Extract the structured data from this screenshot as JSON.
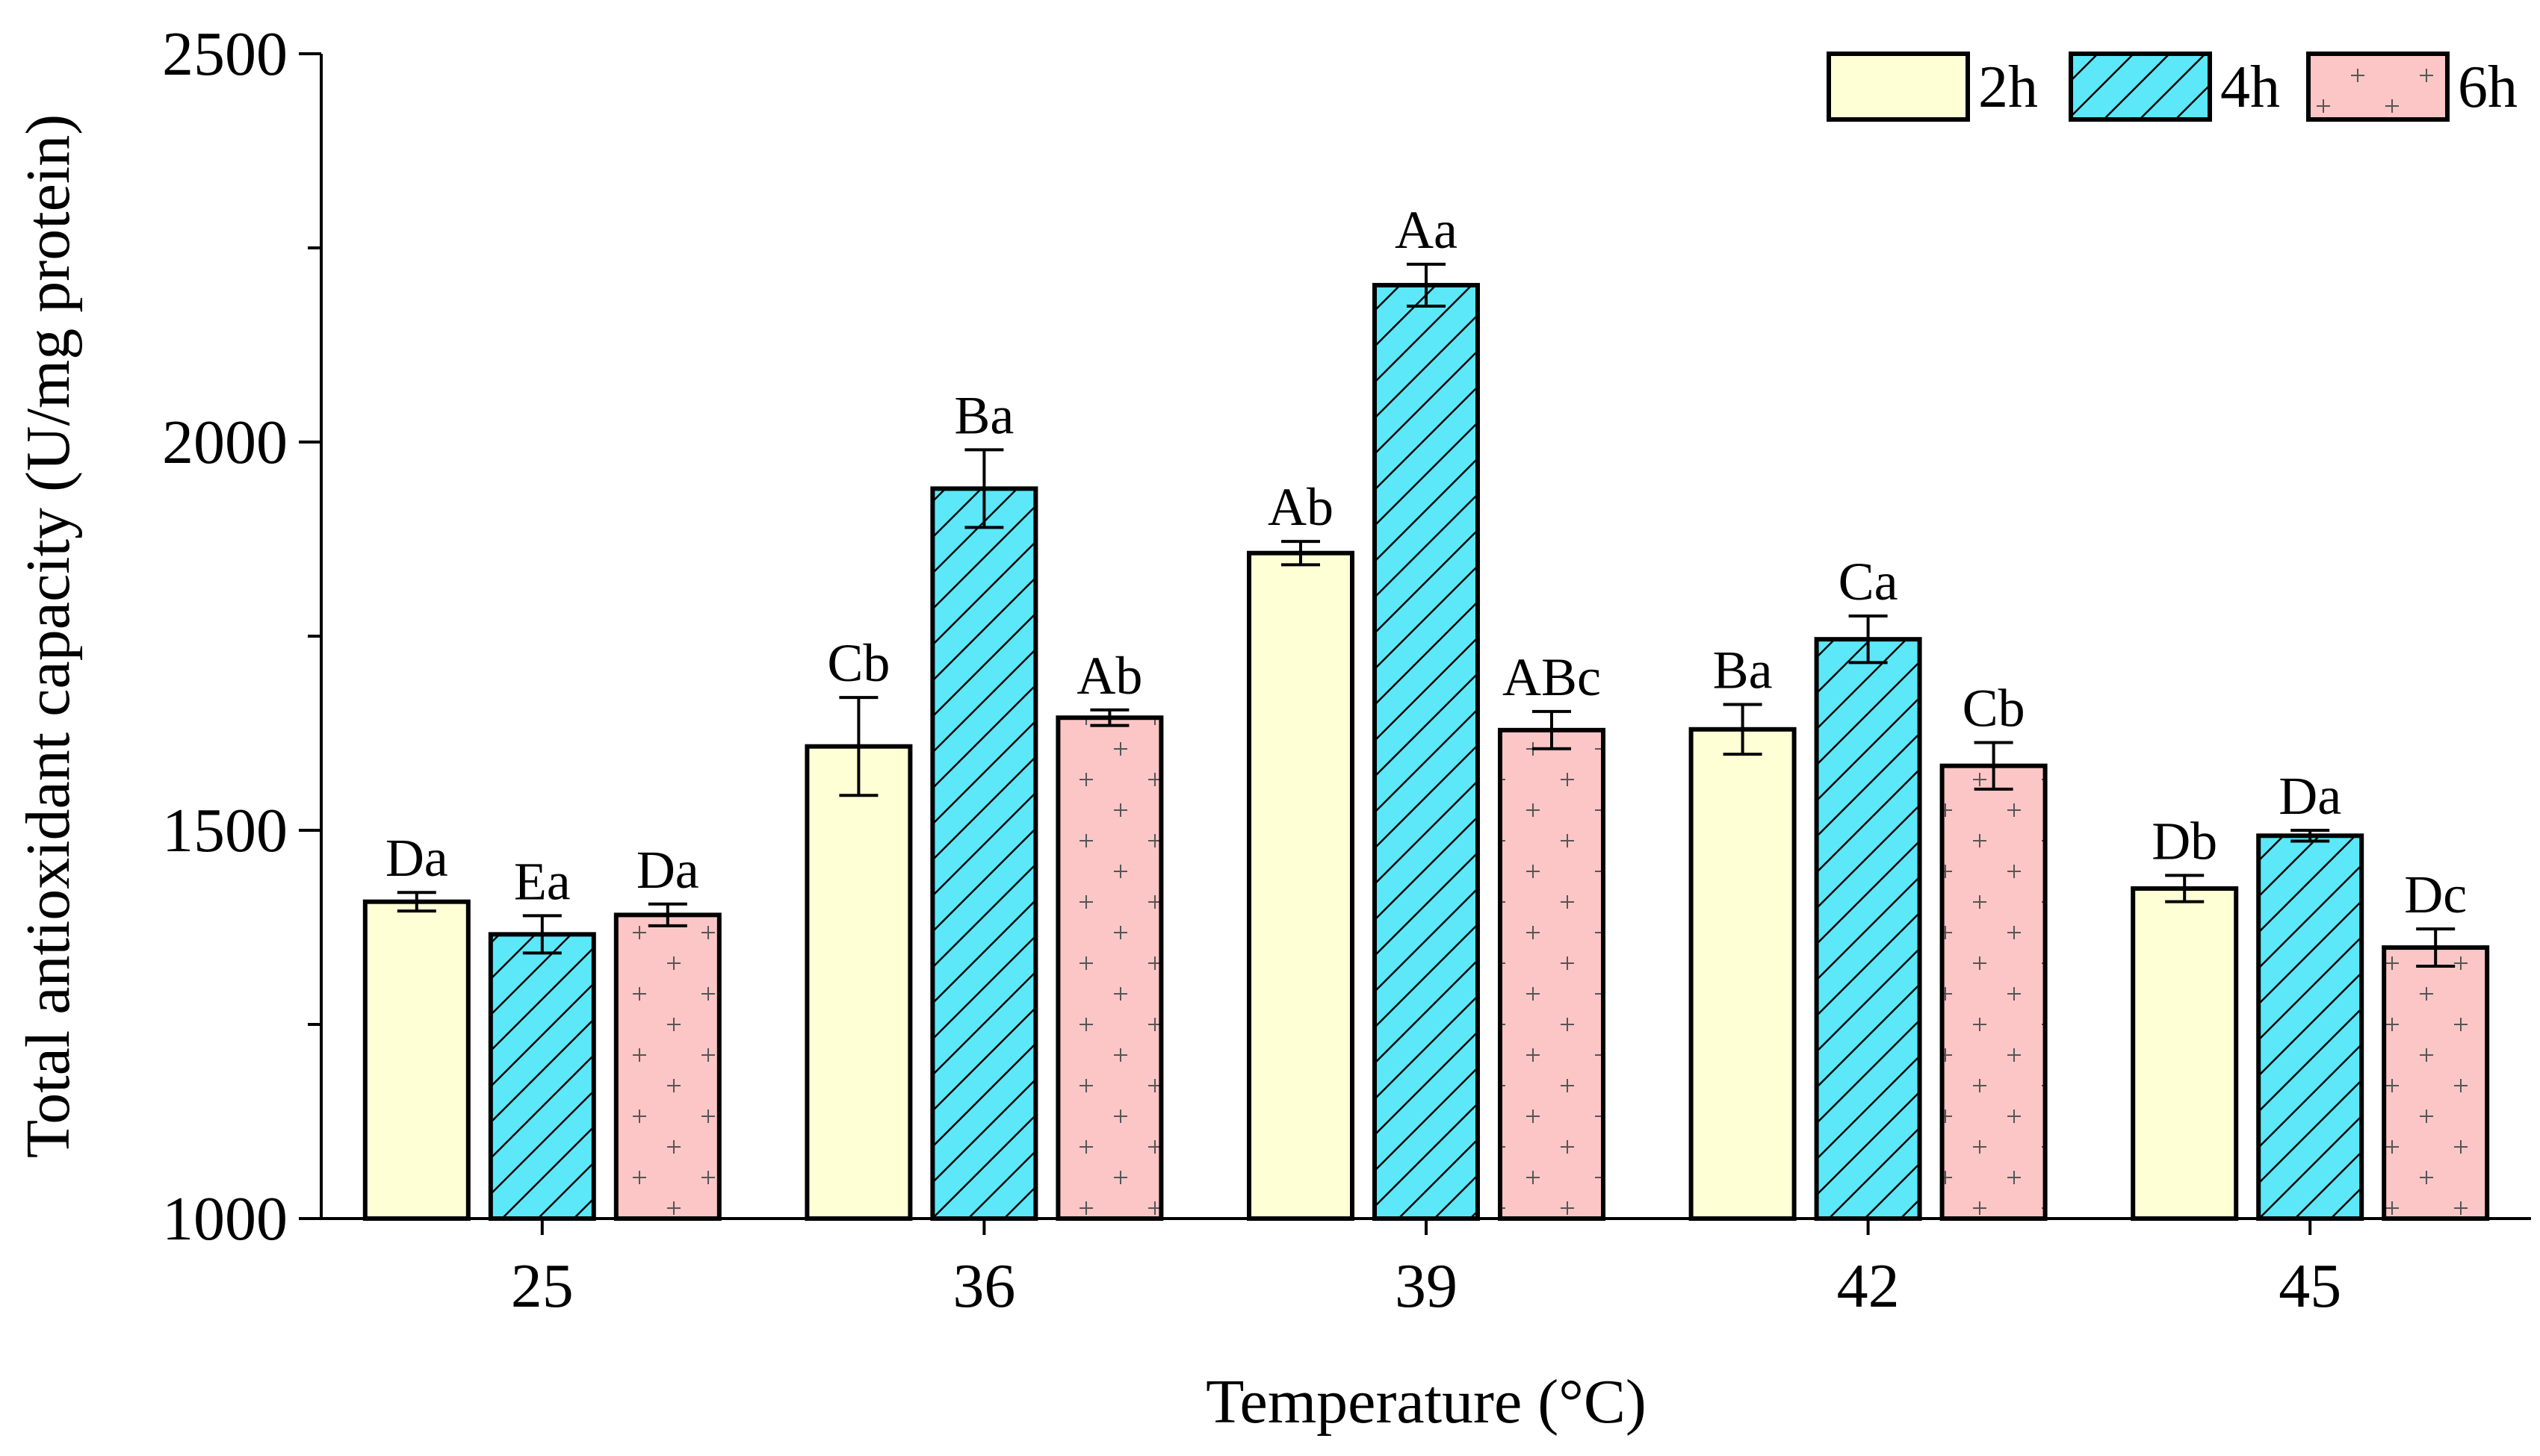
{
  "chart_data": {
    "type": "bar",
    "title": "",
    "xlabel": "Temperature (°C)",
    "ylabel": "Total antioxidant capacity (U/mg protein)",
    "ylim": [
      1000,
      2500
    ],
    "yticks": [
      "1000",
      "1500",
      "2000",
      "2500"
    ],
    "grid": false,
    "legend_position": "top-right",
    "categories": [
      "25",
      "36",
      "39",
      "42",
      "45"
    ],
    "series": [
      {
        "name": "2h",
        "color": "#ffffd6",
        "pattern": "none",
        "values": [
          1408,
          1608,
          1857,
          1630,
          1425
        ],
        "errors": [
          12,
          63,
          15,
          32,
          17
        ],
        "labels": [
          "Da",
          "Cb",
          "Ab",
          "Ba",
          "Db"
        ]
      },
      {
        "name": "4h",
        "color": "#5ce8f9",
        "pattern": "diagonal",
        "values": [
          1366,
          1940,
          2202,
          1746,
          1493
        ],
        "errors": [
          24,
          50,
          27,
          30,
          7
        ],
        "labels": [
          "Ea",
          "Ba",
          "Aa",
          "Ca",
          "Da"
        ]
      },
      {
        "name": "6h",
        "color": "#fcc6c6",
        "pattern": "plus",
        "values": [
          1391,
          1645,
          1629,
          1583,
          1349
        ],
        "errors": [
          14,
          10,
          24,
          30,
          24
        ],
        "labels": [
          "Da",
          "Ab",
          "ABc",
          "Cb",
          "Dc"
        ]
      }
    ]
  }
}
